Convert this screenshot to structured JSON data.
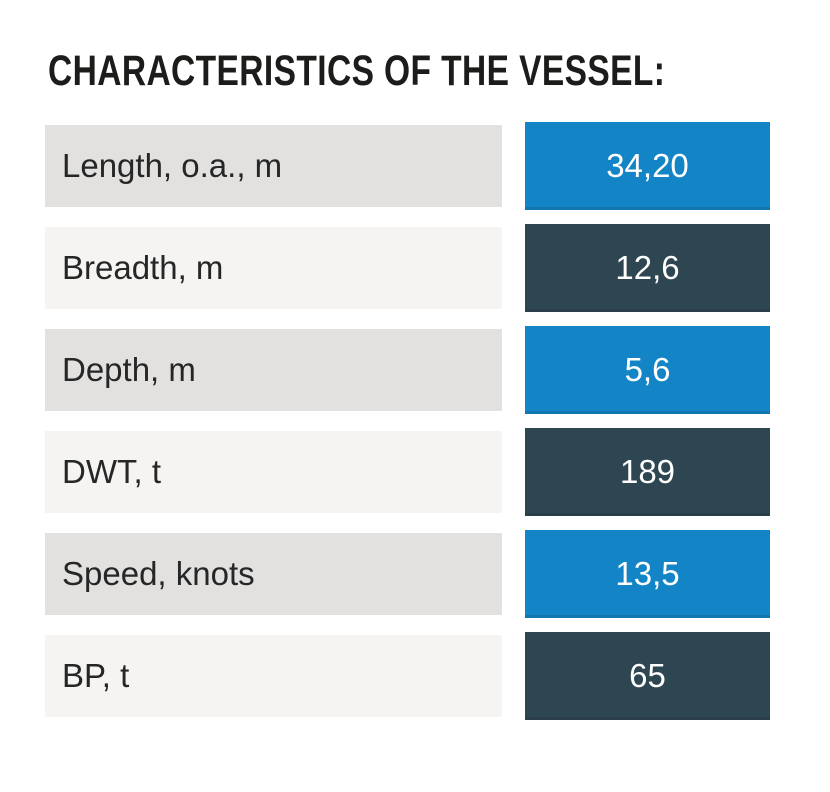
{
  "title": "CHARACTERISTICS OF THE VESSEL:",
  "colors": {
    "blue": "#1385c6",
    "dark": "#2e4651",
    "row_gray": "#e2e1e0",
    "row_light": "#f5f4f3",
    "title_text": "#1c1c1a",
    "label_text": "#262626"
  },
  "table": {
    "rows": [
      {
        "label": "Length, o.a., m",
        "value": "34,20",
        "value_style": "blue",
        "label_style": "gray"
      },
      {
        "label": "Breadth, m",
        "value": "12,6",
        "value_style": "dark",
        "label_style": "light"
      },
      {
        "label": "Depth, m",
        "value": "5,6",
        "value_style": "blue",
        "label_style": "gray"
      },
      {
        "label": "DWT, t",
        "value": "189",
        "value_style": "dark",
        "label_style": "light"
      },
      {
        "label": "Speed, knots",
        "value": "13,5",
        "value_style": "blue",
        "label_style": "gray"
      },
      {
        "label": "BP, t",
        "value": "65",
        "value_style": "dark",
        "label_style": "light"
      }
    ]
  }
}
